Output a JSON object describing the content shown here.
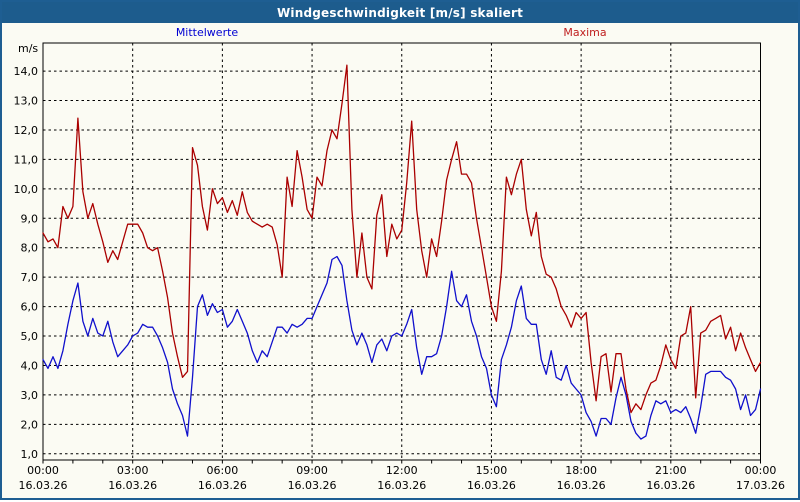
{
  "window": {
    "title": "Windgeschwindigkeit [m/s] skaliert"
  },
  "legend": {
    "mean_label": "Mittelwerte",
    "max_label": "Maxima"
  },
  "axis_unit_label": "m/s",
  "colors": {
    "title_bar": "#1D5C8D",
    "window_border": "#1E5E92",
    "background": "#FBFBF3",
    "mean_line": "#1010CC",
    "max_line": "#AA0000",
    "legend_mean_text": "#0000D2",
    "legend_max_text": "#C02020",
    "grid": "#000000"
  },
  "chart_data": {
    "type": "line",
    "title": "Windgeschwindigkeit [m/s] skaliert",
    "ylabel": "m/s",
    "xlabel": "",
    "ylim": [
      1,
      14
    ],
    "x_range_hours": [
      0,
      24
    ],
    "grid": "dashed",
    "legend_position": "top",
    "sample_interval_minutes": 10,
    "y_ticks": [
      {
        "value": 14,
        "label": "14,0"
      },
      {
        "value": 13,
        "label": "13,0"
      },
      {
        "value": 12,
        "label": "12,0"
      },
      {
        "value": 11,
        "label": "11,0"
      },
      {
        "value": 10,
        "label": "10,0"
      },
      {
        "value": 9,
        "label": "9,0"
      },
      {
        "value": 8,
        "label": "8,0"
      },
      {
        "value": 7,
        "label": "7,0"
      },
      {
        "value": 6,
        "label": "6,0"
      },
      {
        "value": 5,
        "label": "5,0"
      },
      {
        "value": 4,
        "label": "4,0"
      },
      {
        "value": 3,
        "label": "3,0"
      },
      {
        "value": 2,
        "label": "2,0"
      },
      {
        "value": 1,
        "label": "1,0"
      }
    ],
    "x_ticks": [
      {
        "hour": 0,
        "time": "00:00",
        "date": "16.03.26"
      },
      {
        "hour": 3,
        "time": "03:00",
        "date": "16.03.26"
      },
      {
        "hour": 6,
        "time": "06:00",
        "date": "16.03.26"
      },
      {
        "hour": 9,
        "time": "09:00",
        "date": "16.03.26"
      },
      {
        "hour": 12,
        "time": "12:00",
        "date": "16.03.26"
      },
      {
        "hour": 15,
        "time": "15:00",
        "date": "16.03.26"
      },
      {
        "hour": 18,
        "time": "18:00",
        "date": "16.03.26"
      },
      {
        "hour": 21,
        "time": "21:00",
        "date": "16.03.26"
      },
      {
        "hour": 24,
        "time": "00:00",
        "date": "17.03.26"
      }
    ],
    "v_gridline_hours": [
      3,
      6,
      9,
      12,
      15,
      18,
      21
    ],
    "series": [
      {
        "name": "Mittelwerte",
        "color": "#1010CC",
        "values": [
          4.2,
          3.9,
          4.3,
          3.9,
          4.5,
          5.4,
          6.2,
          6.8,
          5.5,
          5.0,
          5.6,
          5.1,
          5.0,
          5.5,
          4.8,
          4.3,
          4.5,
          4.7,
          5.0,
          5.1,
          5.4,
          5.3,
          5.3,
          5.0,
          4.6,
          4.1,
          3.2,
          2.7,
          2.3,
          1.6,
          3.6,
          6.0,
          6.4,
          5.7,
          6.1,
          5.8,
          5.9,
          5.3,
          5.5,
          5.9,
          5.5,
          5.1,
          4.5,
          4.1,
          4.5,
          4.3,
          4.8,
          5.3,
          5.3,
          5.1,
          5.4,
          5.3,
          5.4,
          5.6,
          5.6,
          6.0,
          6.4,
          6.8,
          7.6,
          7.7,
          7.4,
          6.2,
          5.2,
          4.7,
          5.1,
          4.7,
          4.1,
          4.7,
          4.9,
          4.5,
          5.0,
          5.1,
          5.0,
          5.4,
          5.9,
          4.6,
          3.7,
          4.3,
          4.3,
          4.4,
          5.0,
          6.0,
          7.2,
          6.2,
          6.0,
          6.4,
          5.5,
          5.0,
          4.3,
          3.9,
          3.0,
          2.6,
          4.2,
          4.7,
          5.3,
          6.2,
          6.7,
          5.6,
          5.4,
          5.4,
          4.2,
          3.7,
          4.5,
          3.6,
          3.5,
          4.0,
          3.4,
          3.2,
          3.0,
          2.4,
          2.1,
          1.6,
          2.2,
          2.2,
          2.0,
          2.9,
          3.6,
          3.0,
          2.1,
          1.7,
          1.5,
          1.6,
          2.3,
          2.8,
          2.7,
          2.8,
          2.4,
          2.5,
          2.4,
          2.6,
          2.2,
          1.7,
          2.6,
          3.7,
          3.8,
          3.8,
          3.8,
          3.6,
          3.5,
          3.2,
          2.5,
          3.0,
          2.3,
          2.5,
          3.2
        ]
      },
      {
        "name": "Maxima",
        "color": "#AA0000",
        "values": [
          8.5,
          8.2,
          8.3,
          8.0,
          9.4,
          9.0,
          9.4,
          12.4,
          9.9,
          9.0,
          9.5,
          8.8,
          8.2,
          7.5,
          7.9,
          7.6,
          8.2,
          8.8,
          8.8,
          8.8,
          8.5,
          8.0,
          7.9,
          8.0,
          7.2,
          6.3,
          5.1,
          4.3,
          3.6,
          3.8,
          11.4,
          10.8,
          9.4,
          8.6,
          10.0,
          9.5,
          9.7,
          9.2,
          9.6,
          9.1,
          9.9,
          9.2,
          8.9,
          8.8,
          8.7,
          8.8,
          8.7,
          8.1,
          7.0,
          10.4,
          9.4,
          11.3,
          10.4,
          9.3,
          9.0,
          10.4,
          10.1,
          11.3,
          12.0,
          11.7,
          12.9,
          14.2,
          9.3,
          7.0,
          8.5,
          7.0,
          6.6,
          9.1,
          9.8,
          7.7,
          8.8,
          8.3,
          8.6,
          10.2,
          12.3,
          9.3,
          7.9,
          7.0,
          8.3,
          7.7,
          8.9,
          10.3,
          11.0,
          11.6,
          10.5,
          10.5,
          10.2,
          9.0,
          8.0,
          7.0,
          6.0,
          5.5,
          7.2,
          10.4,
          9.8,
          10.5,
          11.0,
          9.3,
          8.4,
          9.2,
          7.7,
          7.1,
          7.0,
          6.6,
          6.0,
          5.7,
          5.3,
          5.8,
          5.6,
          5.8,
          4.1,
          2.8,
          4.3,
          4.4,
          3.1,
          4.4,
          4.4,
          3.2,
          2.4,
          2.7,
          2.5,
          3.0,
          3.4,
          3.5,
          4.0,
          4.7,
          4.2,
          3.9,
          5.0,
          5.1,
          6.0,
          2.9,
          5.1,
          5.2,
          5.5,
          5.6,
          5.7,
          4.9,
          5.3,
          4.5,
          5.1,
          4.6,
          4.2,
          3.8,
          4.1
        ]
      }
    ]
  }
}
